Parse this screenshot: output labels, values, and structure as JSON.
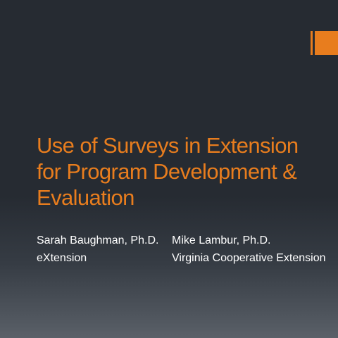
{
  "slide": {
    "accent_color": "#e87d1e",
    "background_color": "#262b32",
    "title_lines": [
      "Use of Surveys in Extension",
      "for Program Development &",
      "Evaluation"
    ],
    "authors": [
      {
        "name": "Sarah Baughman, Ph.D.",
        "affiliation": "eXtension"
      },
      {
        "name": "Mike Lambur, Ph.D.",
        "affiliation": "Virginia Cooperative Extension"
      }
    ]
  }
}
